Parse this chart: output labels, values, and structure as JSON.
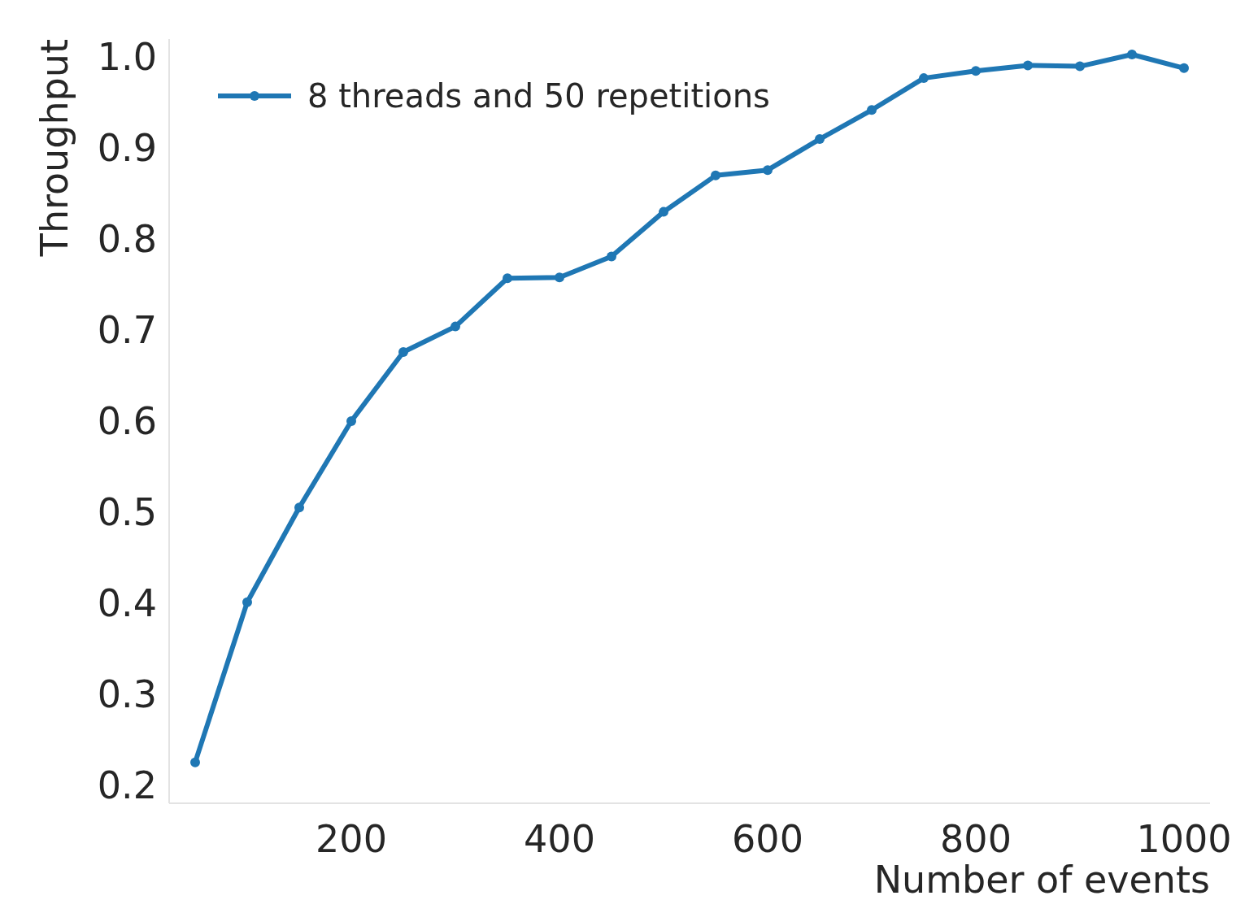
{
  "chart_data": {
    "type": "line",
    "xlabel": "Number of events",
    "ylabel": "Throughput",
    "x": [
      50,
      100,
      150,
      200,
      250,
      300,
      350,
      400,
      450,
      500,
      550,
      600,
      650,
      700,
      750,
      800,
      850,
      900,
      950,
      1000
    ],
    "series": [
      {
        "name": "8 threads and 50 repetitions",
        "color": "#1f77b4",
        "values": [
          0.225,
          0.401,
          0.505,
          0.6,
          0.676,
          0.704,
          0.757,
          0.758,
          0.781,
          0.83,
          0.87,
          0.876,
          0.91,
          0.942,
          0.977,
          0.985,
          0.991,
          0.99,
          1.003,
          0.988
        ]
      }
    ],
    "xlim": [
      25,
      1025
    ],
    "ylim": [
      0.18,
      1.02
    ],
    "xticks": [
      200,
      400,
      600,
      800,
      1000
    ],
    "yticks": [
      {
        "value": 0.2,
        "label": "0.2"
      },
      {
        "value": 0.3,
        "label": "0.3"
      },
      {
        "value": 0.4,
        "label": "0.4"
      },
      {
        "value": 0.5,
        "label": "0.5"
      },
      {
        "value": 0.6,
        "label": "0.6"
      },
      {
        "value": 0.7,
        "label": "0.7"
      },
      {
        "value": 0.8,
        "label": "0.8"
      },
      {
        "value": 0.9,
        "label": "0.9"
      },
      {
        "value": 1.0,
        "label": "1.0"
      }
    ],
    "legend": "top left",
    "marker": "circle",
    "line_style": "solid"
  }
}
